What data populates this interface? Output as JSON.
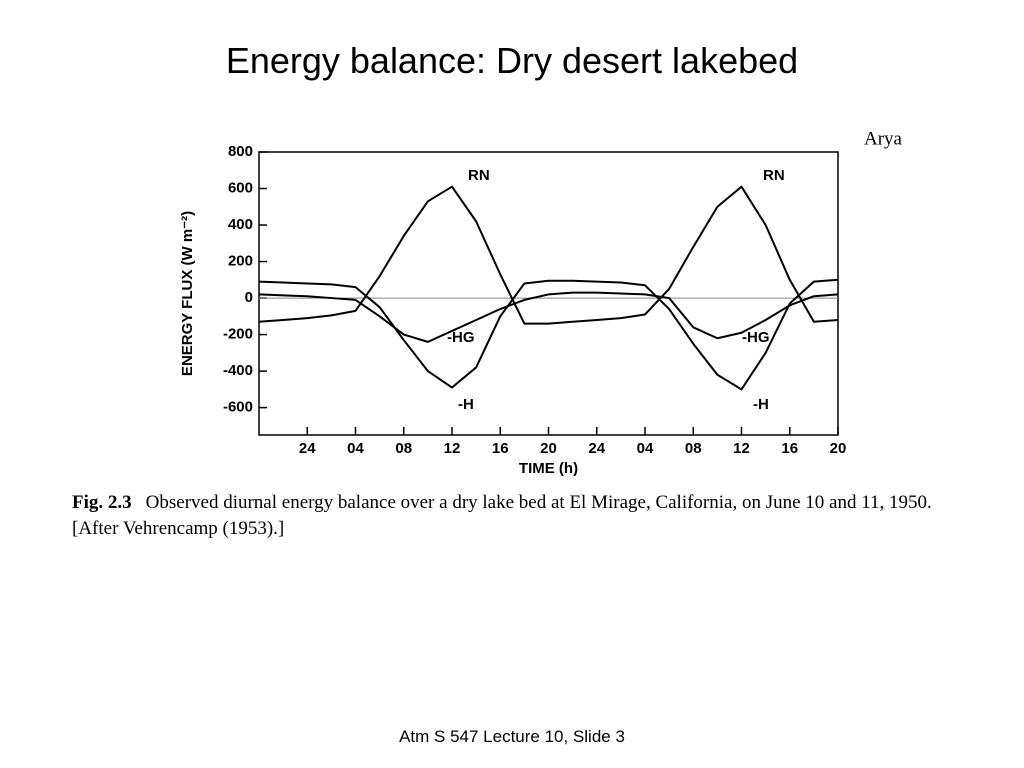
{
  "title": "Energy balance: Dry desert lakebed",
  "source": "Arya",
  "caption": {
    "label": "Fig. 2.3",
    "text": "Observed diurnal energy balance over a dry lake bed at El Mirage, California, on June 10 and 11, 1950. [After Vehrencamp (1953).]"
  },
  "footer": "Atm S 547  Lecture 10, Slide 3",
  "chart_data": {
    "type": "line",
    "x_label": "TIME (h)",
    "y_label": "ENERGY FLUX (W m⁻²)",
    "x": [
      -4,
      -2,
      0,
      2,
      4,
      6,
      8,
      10,
      12,
      14,
      16,
      18,
      20,
      22,
      24,
      26,
      28,
      30,
      32,
      34,
      36,
      38,
      40,
      42,
      44
    ],
    "series": [
      {
        "name": "RN",
        "color": "#000000",
        "values": [
          -130,
          -120,
          -110,
          -95,
          -70,
          120,
          340,
          530,
          610,
          420,
          130,
          -140,
          -140,
          -130,
          -120,
          -110,
          -90,
          50,
          280,
          500,
          610,
          400,
          100,
          -130,
          -120
        ]
      },
      {
        "name": "-H",
        "color": "#000000",
        "values": [
          90,
          85,
          80,
          75,
          60,
          -50,
          -230,
          -400,
          -490,
          -380,
          -100,
          80,
          95,
          95,
          90,
          85,
          70,
          -60,
          -250,
          -420,
          -500,
          -300,
          -30,
          90,
          100
        ]
      },
      {
        "name": "-HG",
        "color": "#000000",
        "values": [
          20,
          15,
          10,
          0,
          -10,
          -100,
          -200,
          -240,
          -180,
          -120,
          -60,
          -10,
          20,
          30,
          30,
          25,
          20,
          0,
          -160,
          -220,
          -190,
          -120,
          -40,
          10,
          20
        ]
      }
    ],
    "xlim": [
      -4,
      44
    ],
    "xticks": [
      {
        "value": 0,
        "label": "24"
      },
      {
        "value": 4,
        "label": "04"
      },
      {
        "value": 8,
        "label": "08"
      },
      12,
      16,
      20,
      {
        "value": 24,
        "label": "24"
      },
      {
        "value": 28,
        "label": "04"
      },
      {
        "value": 32,
        "label": "08"
      },
      {
        "value": 36,
        "label": "12"
      },
      {
        "value": 40,
        "label": "16"
      },
      {
        "value": 44,
        "label": "20"
      }
    ],
    "ylim": [
      -750,
      800
    ],
    "yticks": [
      -600,
      -400,
      -200,
      0,
      200,
      400,
      600,
      800
    ],
    "zero_line": true
  }
}
